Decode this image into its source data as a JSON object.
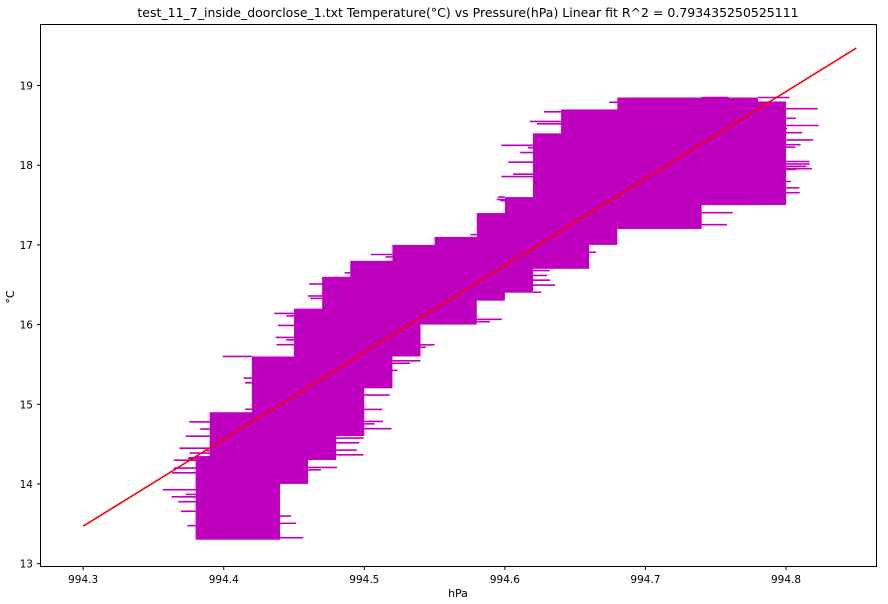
{
  "chart_data": {
    "type": "line",
    "title": "test_11_7_inside_doorclose_1.txt    Temperature(°C) vs Pressure(hPa)    Linear fit    R^2 = 0.793435250525111",
    "xlabel": "hPa",
    "ylabel": "°C",
    "xlim": [
      994.27,
      994.864
    ],
    "ylim": [
      12.97,
      19.76
    ],
    "grid": false,
    "x_ticks": [
      994.3,
      994.4,
      994.5,
      994.6,
      994.7,
      994.8
    ],
    "x_tick_labels": [
      "994.3",
      "994.4",
      "994.5",
      "994.6",
      "994.7",
      "994.8"
    ],
    "y_ticks": [
      13,
      14,
      15,
      16,
      17,
      18,
      19
    ],
    "y_tick_labels": [
      "13",
      "14",
      "15",
      "16",
      "17",
      "18",
      "19"
    ],
    "series": [
      {
        "kind": "measurements",
        "color": "#bf00bf",
        "bands": [
          {
            "x": [
              994.38,
              994.44
            ],
            "y": [
              13.3,
              14.35
            ]
          },
          {
            "x": [
              994.39,
              994.46
            ],
            "y": [
              14.0,
              14.9
            ]
          },
          {
            "x": [
              994.42,
              994.48
            ],
            "y": [
              14.3,
              15.6
            ]
          },
          {
            "x": [
              994.45,
              994.5
            ],
            "y": [
              14.6,
              16.2
            ]
          },
          {
            "x": [
              994.47,
              994.52
            ],
            "y": [
              15.2,
              16.6
            ]
          },
          {
            "x": [
              994.49,
              994.54
            ],
            "y": [
              15.6,
              16.8
            ]
          },
          {
            "x": [
              994.52,
              994.58
            ],
            "y": [
              16.0,
              17.0
            ]
          },
          {
            "x": [
              994.55,
              994.6
            ],
            "y": [
              16.3,
              17.1
            ]
          },
          {
            "x": [
              994.58,
              994.62
            ],
            "y": [
              16.4,
              17.4
            ]
          },
          {
            "x": [
              994.6,
              994.66
            ],
            "y": [
              16.7,
              17.6
            ]
          },
          {
            "x": [
              994.62,
              994.68
            ],
            "y": [
              17.0,
              18.4
            ]
          },
          {
            "x": [
              994.64,
              994.7
            ],
            "y": [
              17.3,
              18.7
            ]
          },
          {
            "x": [
              994.68,
              994.74
            ],
            "y": [
              17.2,
              18.85
            ]
          },
          {
            "x": [
              994.7,
              994.78
            ],
            "y": [
              17.5,
              18.85
            ]
          },
          {
            "x": [
              994.74,
              994.8
            ],
            "y": [
              17.5,
              18.8
            ]
          }
        ]
      },
      {
        "kind": "linear-fit",
        "color": "#ff0000",
        "x": [
          994.3,
          994.85
        ],
        "y": [
          13.47,
          19.47
        ]
      }
    ]
  }
}
